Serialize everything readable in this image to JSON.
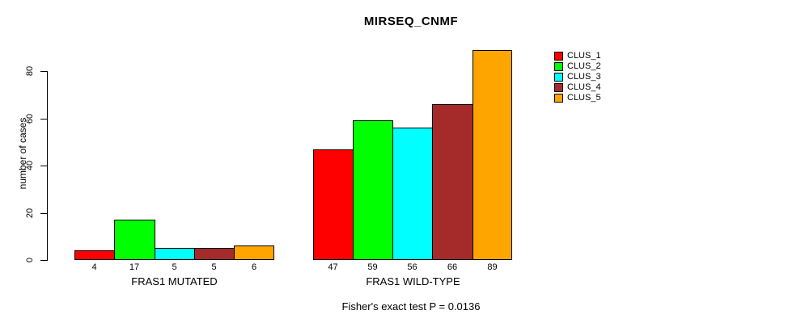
{
  "chart_data": {
    "type": "bar",
    "title": "MIRSEQ_CNMF",
    "ylabel": "number of cases",
    "xlabel": "",
    "categories": [
      "FRAS1 MUTATED",
      "FRAS1 WILD-TYPE"
    ],
    "series": [
      {
        "name": "CLUS_1",
        "color": "#ff0000",
        "values": [
          4,
          47
        ]
      },
      {
        "name": "CLUS_2",
        "color": "#00ff00",
        "values": [
          17,
          59
        ]
      },
      {
        "name": "CLUS_3",
        "color": "#00ffff",
        "values": [
          5,
          56
        ]
      },
      {
        "name": "CLUS_4",
        "color": "#a52a2a",
        "values": [
          5,
          66
        ]
      },
      {
        "name": "CLUS_5",
        "color": "#ffa500",
        "values": [
          6,
          89
        ]
      }
    ],
    "yticks": [
      0,
      20,
      40,
      60,
      80
    ],
    "ylim": [
      0,
      89
    ],
    "grid": false,
    "show_value_labels": true,
    "legend_position": "top-right",
    "annotation": "Fisher's exact test P = 0.0136",
    "background_color": "#ffffff",
    "bar_border_color": "#000000",
    "text_color": "#000000"
  }
}
